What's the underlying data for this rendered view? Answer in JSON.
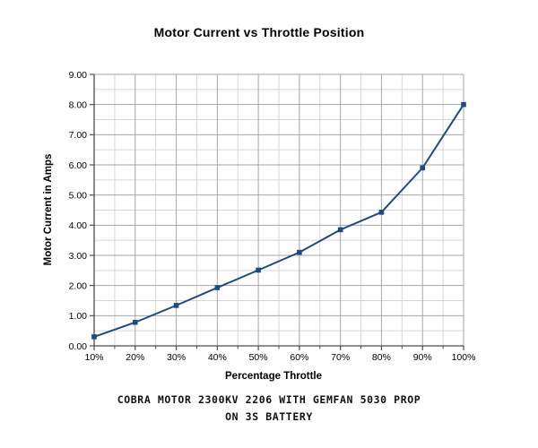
{
  "chart_data": {
    "type": "line",
    "title": "Motor Current vs Throttle Position",
    "xlabel": "Percentage Throttle",
    "ylabel": "Motor Current in Amps",
    "categories": [
      "10%",
      "20%",
      "30%",
      "40%",
      "50%",
      "60%",
      "70%",
      "80%",
      "90%",
      "100%"
    ],
    "series": [
      {
        "name": "Motor Current",
        "values": [
          0.3,
          0.78,
          1.34,
          1.93,
          2.51,
          3.1,
          3.85,
          4.43,
          5.9,
          8.0
        ]
      }
    ],
    "ylim": [
      0,
      9
    ],
    "y_major_step": 1.0,
    "y_minor_step": 0.5,
    "x_minor_divisions": 2,
    "y_ticks": [
      "0.00",
      "1.00",
      "2.00",
      "3.00",
      "4.00",
      "5.00",
      "6.00",
      "7.00",
      "8.00",
      "9.00"
    ],
    "grid": "major+minor",
    "legend_position": "none",
    "colors": {
      "line": "#1D4B80",
      "marker": "#1D4B80",
      "grid_major": "#A6A6A6",
      "grid_minor": "#D6D6D6",
      "axis": "#4d4d4d",
      "text": "#000000"
    }
  },
  "caption": {
    "line1": "COBRA MOTOR 2300KV 2206 WITH GEMFAN 5030 PROP",
    "line2": "ON 3S BATTERY"
  }
}
